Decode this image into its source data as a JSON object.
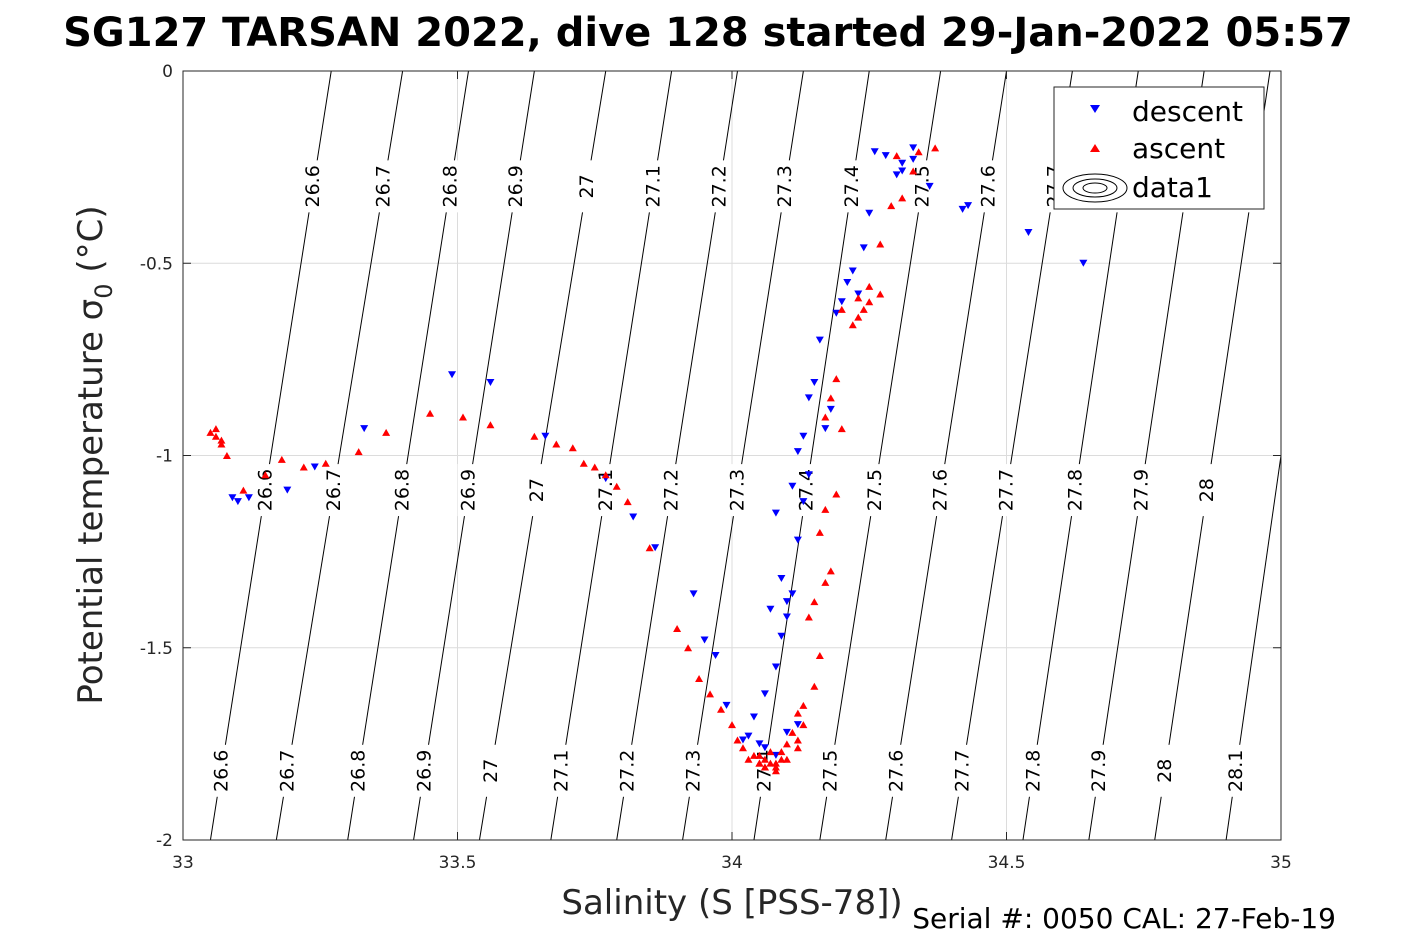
{
  "chart_data": {
    "type": "scatter",
    "title": "SG127 TARSAN 2022, dive 128 started 29-Jan-2022 05:57",
    "xlabel": "Salinity (S [PSS-78])",
    "ylabel": "Potential temperature σ₀ (°C)",
    "ylabel_main": "Potential temperature σ",
    "ylabel_sub": "0",
    "ylabel_unit": " (°C)",
    "xlim": [
      33,
      35
    ],
    "ylim": [
      -2,
      0
    ],
    "xticks": [
      33,
      33.5,
      34,
      34.5,
      35
    ],
    "xtick_labels": [
      "33",
      "33.5",
      "34",
      "34.5",
      "35"
    ],
    "yticks": [
      0,
      -0.5,
      -1,
      -1.5,
      -2
    ],
    "ytick_labels": [
      "0",
      "-0.5",
      "-1",
      "-1.5",
      "-2"
    ],
    "grid": true,
    "legend_placement": "top-right",
    "legend": [
      "descent",
      "ascent",
      "data1"
    ],
    "colors": {
      "descent": "#0000ff",
      "ascent": "#ff0000",
      "contour": "#000000",
      "grid": "#dcdcdc"
    },
    "footer": "Serial #: 0050  CAL: 27-Feb-19",
    "density_contours": {
      "levels": [
        26.6,
        26.7,
        26.8,
        26.9,
        27,
        27.1,
        27.2,
        27.3,
        27.4,
        27.5,
        27.6,
        27.7,
        27.8,
        27.9,
        28,
        28.1
      ],
      "labels": [
        "26.6",
        "26.7",
        "26.8",
        "26.9",
        "27",
        "27.1",
        "27.2",
        "27.3",
        "27.4",
        "27.5",
        "27.6",
        "27.7",
        "27.8",
        "27.9",
        "28",
        "28.1"
      ],
      "salinity_at_theta_0": [
        33.27,
        33.4,
        33.52,
        33.64,
        33.77,
        33.89,
        34.01,
        34.13,
        34.25,
        34.38,
        34.5,
        34.62,
        34.74,
        34.86,
        34.98,
        35.1
      ],
      "salinity_at_theta_minus2": [
        33.05,
        33.17,
        33.3,
        33.42,
        33.54,
        33.67,
        33.79,
        33.91,
        34.04,
        34.16,
        34.28,
        34.4,
        34.53,
        34.65,
        34.77,
        34.9
      ]
    },
    "series": [
      {
        "name": "descent",
        "marker": "triangle-down",
        "x": [
          34.26,
          34.28,
          34.31,
          34.33,
          34.36,
          34.43,
          34.42,
          34.3,
          34.31,
          34.33,
          34.54,
          34.64,
          34.25,
          34.24,
          34.22,
          34.21,
          34.23,
          34.2,
          34.19,
          34.16,
          34.15,
          34.14,
          34.18,
          34.17,
          34.13,
          34.12,
          34.14,
          34.11,
          34.13,
          34.08,
          34.12,
          34.09,
          34.1,
          34.07,
          34.11,
          34.1,
          34.09,
          34.08,
          34.06,
          34.04,
          34.02,
          33.99,
          33.97,
          33.95,
          33.93,
          33.82,
          33.86,
          33.77,
          33.66,
          33.56,
          33.49,
          33.33,
          33.24,
          33.19,
          33.12,
          33.1,
          33.09,
          34.08,
          34.06,
          34.05,
          34.03,
          34.1,
          34.12
        ],
        "y": [
          -0.21,
          -0.22,
          -0.24,
          -0.2,
          -0.3,
          -0.35,
          -0.36,
          -0.27,
          -0.26,
          -0.23,
          -0.42,
          -0.5,
          -0.37,
          -0.46,
          -0.52,
          -0.55,
          -0.58,
          -0.6,
          -0.63,
          -0.7,
          -0.81,
          -0.85,
          -0.88,
          -0.93,
          -0.95,
          -0.99,
          -1.05,
          -1.08,
          -1.12,
          -1.15,
          -1.22,
          -1.32,
          -1.38,
          -1.4,
          -1.36,
          -1.42,
          -1.47,
          -1.55,
          -1.62,
          -1.68,
          -1.74,
          -1.65,
          -1.52,
          -1.48,
          -1.36,
          -1.16,
          -1.24,
          -1.06,
          -0.95,
          -0.81,
          -0.79,
          -0.93,
          -1.03,
          -1.09,
          -1.11,
          -1.12,
          -1.11,
          -1.78,
          -1.76,
          -1.75,
          -1.73,
          -1.72,
          -1.7
        ]
      },
      {
        "name": "ascent",
        "marker": "triangle-up",
        "x": [
          34.34,
          34.37,
          34.31,
          34.33,
          34.3,
          34.29,
          34.27,
          34.25,
          34.27,
          34.24,
          34.23,
          34.22,
          34.25,
          34.23,
          34.2,
          34.19,
          34.18,
          34.17,
          34.2,
          34.19,
          34.17,
          34.16,
          34.18,
          34.17,
          34.15,
          34.14,
          34.16,
          34.15,
          34.13,
          34.12,
          34.13,
          34.11,
          34.12,
          34.1,
          34.12,
          34.09,
          34.1,
          34.08,
          34.06,
          34.05,
          34.04,
          34.03,
          34.02,
          34.01,
          34,
          33.98,
          33.96,
          33.94,
          33.92,
          33.9,
          33.85,
          33.81,
          33.79,
          33.77,
          33.75,
          33.73,
          33.71,
          33.68,
          33.64,
          33.56,
          33.51,
          33.45,
          33.37,
          33.32,
          33.26,
          33.22,
          33.18,
          33.15,
          33.11,
          33.08,
          33.07,
          33.06,
          33.05,
          33.06,
          33.07,
          34.05,
          34.06,
          34.07,
          34.08,
          34.09,
          34.07,
          34.06,
          34.08,
          34.05
        ],
        "y": [
          -0.21,
          -0.2,
          -0.33,
          -0.26,
          -0.22,
          -0.35,
          -0.45,
          -0.6,
          -0.58,
          -0.62,
          -0.64,
          -0.66,
          -0.56,
          -0.59,
          -0.62,
          -0.8,
          -0.85,
          -0.9,
          -0.93,
          -1.1,
          -1.14,
          -1.2,
          -1.3,
          -1.33,
          -1.38,
          -1.42,
          -1.52,
          -1.6,
          -1.65,
          -1.67,
          -1.7,
          -1.72,
          -1.74,
          -1.75,
          -1.76,
          -1.77,
          -1.79,
          -1.8,
          -1.81,
          -1.8,
          -1.78,
          -1.79,
          -1.76,
          -1.74,
          -1.7,
          -1.66,
          -1.62,
          -1.58,
          -1.5,
          -1.45,
          -1.24,
          -1.12,
          -1.08,
          -1.05,
          -1.03,
          -1.02,
          -0.98,
          -0.97,
          -0.95,
          -0.92,
          -0.9,
          -0.89,
          -0.94,
          -0.99,
          -1.02,
          -1.03,
          -1.01,
          -1.05,
          -1.09,
          -1.0,
          -0.97,
          -0.95,
          -0.94,
          -0.93,
          -0.96,
          -1.78,
          -1.79,
          -1.8,
          -1.81,
          -1.79,
          -1.77,
          -1.81,
          -1.82,
          -1.8
        ]
      }
    ]
  }
}
